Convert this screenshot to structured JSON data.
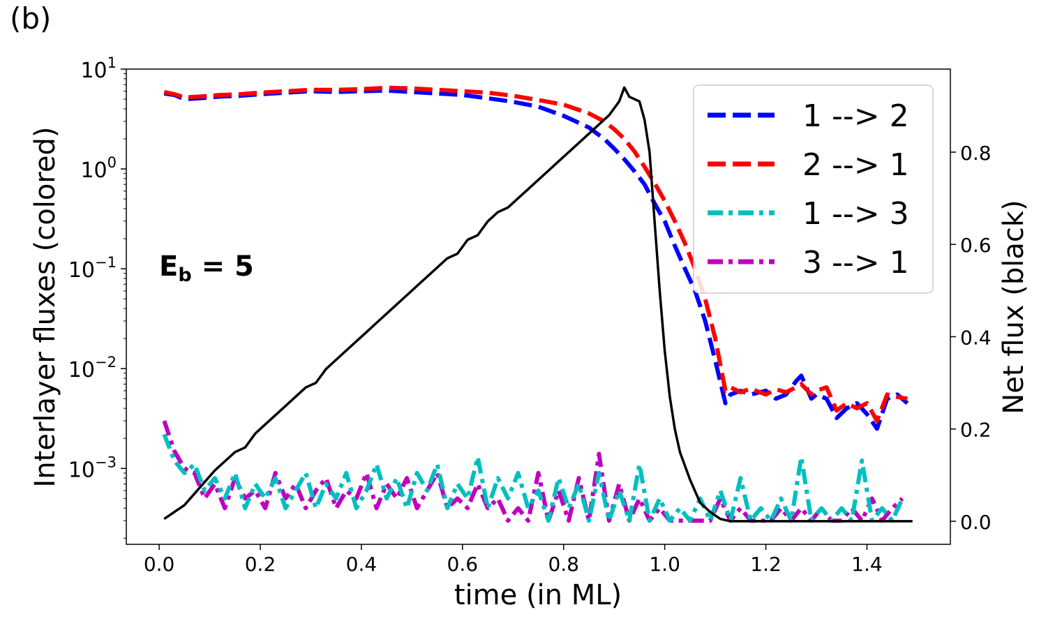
{
  "panel_label": "(b)",
  "annotation": {
    "main": "E",
    "sub": "b",
    "rest": " = 5"
  },
  "chart_data": {
    "type": "line",
    "title": "",
    "xlabel": "time (in ML)",
    "ylabel_left": "Interlayer fluxes (colored)",
    "ylabel_right": "Net flux (black)",
    "xlim": [
      -0.065,
      1.565
    ],
    "ylim_left_log10": [
      -3.76,
      1.0
    ],
    "ylim_right": [
      -0.05,
      0.98
    ],
    "x_ticks": [
      0.0,
      0.2,
      0.4,
      0.6,
      0.8,
      1.0,
      1.2,
      1.4
    ],
    "x_tick_labels": [
      "0.0",
      "0.2",
      "0.4",
      "0.6",
      "0.8",
      "1.0",
      "1.2",
      "1.4"
    ],
    "y_left_ticks": [
      {
        "base": "10",
        "exp": "1",
        "value": 1
      },
      {
        "base": "10",
        "exp": "0",
        "value": 0
      },
      {
        "base": "10",
        "exp": "−1",
        "value": -1
      },
      {
        "base": "10",
        "exp": "−2",
        "value": -2
      },
      {
        "base": "10",
        "exp": "−3",
        "value": -3
      }
    ],
    "y_right_ticks": [
      0.0,
      0.2,
      0.4,
      0.6,
      0.8
    ],
    "y_right_tick_labels": [
      "0.0",
      "0.2",
      "0.4",
      "0.6",
      "0.8"
    ],
    "legend_position": "upper right",
    "series": [
      {
        "name": "1 --> 2",
        "axis": "left",
        "color": "#0000ff",
        "style": "dashed",
        "x": [
          0.01,
          0.03,
          0.05,
          0.08,
          0.12,
          0.16,
          0.2,
          0.25,
          0.3,
          0.35,
          0.4,
          0.45,
          0.5,
          0.55,
          0.6,
          0.65,
          0.7,
          0.75,
          0.8,
          0.85,
          0.88,
          0.9,
          0.92,
          0.94,
          0.96,
          0.98,
          1.0,
          1.02,
          1.04,
          1.06,
          1.08,
          1.1,
          1.12,
          1.13,
          1.15,
          1.17,
          1.2,
          1.22,
          1.24,
          1.26,
          1.27,
          1.29,
          1.3,
          1.32,
          1.34,
          1.36,
          1.38,
          1.4,
          1.42,
          1.44,
          1.46,
          1.48
        ],
        "y": [
          5.7,
          5.5,
          5.0,
          5.1,
          5.3,
          5.4,
          5.6,
          5.8,
          6.0,
          5.9,
          6.0,
          6.1,
          5.9,
          5.7,
          5.5,
          5.1,
          4.7,
          4.2,
          3.4,
          2.6,
          2.0,
          1.6,
          1.25,
          0.95,
          0.7,
          0.45,
          0.3,
          0.17,
          0.1,
          0.06,
          0.03,
          0.012,
          0.0045,
          0.0055,
          0.006,
          0.0055,
          0.006,
          0.005,
          0.0055,
          0.0075,
          0.0085,
          0.005,
          0.0055,
          0.005,
          0.0032,
          0.004,
          0.0045,
          0.0035,
          0.0025,
          0.005,
          0.0055,
          0.0045
        ]
      },
      {
        "name": "2 --> 1",
        "axis": "left",
        "color": "#ff0000",
        "style": "dashed",
        "x": [
          0.01,
          0.03,
          0.05,
          0.08,
          0.12,
          0.16,
          0.2,
          0.25,
          0.3,
          0.35,
          0.4,
          0.45,
          0.5,
          0.55,
          0.6,
          0.65,
          0.7,
          0.75,
          0.8,
          0.85,
          0.88,
          0.9,
          0.92,
          0.94,
          0.96,
          0.98,
          1.0,
          1.02,
          1.04,
          1.06,
          1.08,
          1.1,
          1.12,
          1.13,
          1.15,
          1.17,
          1.2,
          1.22,
          1.24,
          1.26,
          1.27,
          1.29,
          1.3,
          1.32,
          1.34,
          1.36,
          1.38,
          1.4,
          1.42,
          1.44,
          1.46,
          1.48
        ],
        "y": [
          5.9,
          5.6,
          5.2,
          5.3,
          5.5,
          5.6,
          5.8,
          6.0,
          6.2,
          6.2,
          6.3,
          6.5,
          6.4,
          6.2,
          6.0,
          5.8,
          5.4,
          4.9,
          4.4,
          3.6,
          3.0,
          2.5,
          2.0,
          1.5,
          1.05,
          0.72,
          0.48,
          0.3,
          0.18,
          0.1,
          0.05,
          0.02,
          0.006,
          0.0065,
          0.0058,
          0.0063,
          0.0055,
          0.0062,
          0.0058,
          0.0065,
          0.007,
          0.0055,
          0.006,
          0.0065,
          0.0038,
          0.0045,
          0.004,
          0.0045,
          0.003,
          0.0055,
          0.0052,
          0.005
        ]
      },
      {
        "name": "1 --> 3",
        "axis": "left",
        "color": "#00bfbf",
        "style": "dashdot",
        "x": [
          0.01,
          0.03,
          0.05,
          0.07,
          0.09,
          0.11,
          0.13,
          0.15,
          0.17,
          0.19,
          0.21,
          0.23,
          0.25,
          0.27,
          0.29,
          0.31,
          0.33,
          0.35,
          0.37,
          0.39,
          0.41,
          0.43,
          0.45,
          0.47,
          0.49,
          0.51,
          0.53,
          0.55,
          0.57,
          0.59,
          0.61,
          0.63,
          0.65,
          0.67,
          0.69,
          0.71,
          0.73,
          0.75,
          0.77,
          0.79,
          0.81,
          0.83,
          0.85,
          0.87,
          0.89,
          0.91,
          0.93,
          0.95,
          0.97,
          0.99,
          1.01,
          1.03,
          1.05,
          1.07,
          1.09,
          1.11,
          1.13,
          1.15,
          1.17,
          1.19,
          1.21,
          1.23,
          1.25,
          1.27,
          1.29,
          1.31,
          1.33,
          1.35,
          1.37,
          1.39,
          1.41,
          1.43,
          1.45,
          1.47
        ],
        "y": [
          0.0022,
          0.0012,
          0.0009,
          0.0011,
          0.0006,
          0.0008,
          0.0005,
          0.0009,
          0.0004,
          0.0007,
          0.0005,
          0.0008,
          0.0004,
          0.0006,
          0.0009,
          0.0004,
          0.0007,
          0.0005,
          0.0009,
          0.0004,
          0.0006,
          0.0011,
          0.0005,
          0.0008,
          0.0004,
          0.0009,
          0.0006,
          0.0011,
          0.0004,
          0.0007,
          0.0005,
          0.0013,
          0.0004,
          0.0008,
          0.0005,
          0.0009,
          0.0004,
          0.0006,
          0.0003,
          0.0008,
          0.0004,
          0.0007,
          0.0003,
          0.0009,
          0.0003,
          0.0006,
          0.0003,
          0.0011,
          0.0003,
          0.0005,
          0.0003,
          0.0004,
          0.0003,
          0.0005,
          0.0003,
          0.0006,
          0.0003,
          0.0008,
          0.0003,
          0.0004,
          0.0003,
          0.0005,
          0.0003,
          0.0013,
          0.0003,
          0.0004,
          0.0003,
          0.0004,
          0.0003,
          0.0012,
          0.0003,
          0.0004,
          0.0003,
          0.0005
        ]
      },
      {
        "name": "3 --> 1",
        "axis": "left",
        "color": "#bf00bf",
        "style": "dashdot",
        "x": [
          0.01,
          0.03,
          0.05,
          0.07,
          0.09,
          0.11,
          0.13,
          0.15,
          0.17,
          0.19,
          0.21,
          0.23,
          0.25,
          0.27,
          0.29,
          0.31,
          0.33,
          0.35,
          0.37,
          0.39,
          0.41,
          0.43,
          0.45,
          0.47,
          0.49,
          0.51,
          0.53,
          0.55,
          0.57,
          0.59,
          0.61,
          0.63,
          0.65,
          0.67,
          0.69,
          0.71,
          0.73,
          0.75,
          0.77,
          0.79,
          0.81,
          0.83,
          0.85,
          0.87,
          0.89,
          0.91,
          0.93,
          0.95,
          0.97,
          0.99,
          1.01,
          1.03,
          1.05,
          1.07,
          1.09,
          1.11,
          1.13,
          1.15,
          1.17,
          1.19,
          1.21,
          1.23,
          1.25,
          1.27,
          1.29,
          1.31,
          1.33,
          1.35,
          1.37,
          1.39,
          1.41,
          1.43,
          1.45,
          1.47
        ],
        "y": [
          0.003,
          0.0015,
          0.001,
          0.0009,
          0.0005,
          0.0007,
          0.0004,
          0.0008,
          0.0005,
          0.0006,
          0.0004,
          0.0009,
          0.0005,
          0.0007,
          0.0004,
          0.0006,
          0.0008,
          0.0004,
          0.0006,
          0.0005,
          0.0009,
          0.0004,
          0.0007,
          0.0005,
          0.0008,
          0.0004,
          0.0006,
          0.0009,
          0.0004,
          0.0005,
          0.0004,
          0.0007,
          0.0004,
          0.0005,
          0.0003,
          0.0004,
          0.0003,
          0.0009,
          0.0003,
          0.0006,
          0.0003,
          0.0008,
          0.0003,
          0.0014,
          0.0003,
          0.0007,
          0.0003,
          0.0005,
          0.0003,
          0.0004,
          0.0003,
          0.0003,
          0.0003,
          0.0003,
          0.0003,
          0.0005,
          0.0003,
          0.0004,
          0.0003,
          0.0003,
          0.0003,
          0.0004,
          0.0003,
          0.0004,
          0.0003,
          0.0004,
          0.0003,
          0.0003,
          0.0004,
          0.0003,
          0.0005,
          0.0003,
          0.0004,
          0.0005
        ]
      },
      {
        "name": "Net flux",
        "axis": "right",
        "color": "#000000",
        "style": "solid",
        "x": [
          0.01,
          0.03,
          0.05,
          0.07,
          0.09,
          0.11,
          0.13,
          0.15,
          0.17,
          0.19,
          0.21,
          0.23,
          0.25,
          0.27,
          0.29,
          0.31,
          0.33,
          0.35,
          0.37,
          0.39,
          0.41,
          0.43,
          0.45,
          0.47,
          0.49,
          0.51,
          0.53,
          0.55,
          0.57,
          0.59,
          0.61,
          0.63,
          0.65,
          0.67,
          0.69,
          0.71,
          0.73,
          0.75,
          0.77,
          0.79,
          0.81,
          0.83,
          0.85,
          0.87,
          0.89,
          0.91,
          0.92,
          0.93,
          0.95,
          0.96,
          0.97,
          0.98,
          0.99,
          1.0,
          1.01,
          1.02,
          1.03,
          1.05,
          1.07,
          1.09,
          1.11,
          1.13,
          1.15,
          1.2,
          1.25,
          1.3,
          1.35,
          1.4,
          1.45,
          1.49
        ],
        "y": [
          0.005,
          0.02,
          0.035,
          0.06,
          0.085,
          0.11,
          0.13,
          0.15,
          0.16,
          0.19,
          0.21,
          0.23,
          0.25,
          0.27,
          0.29,
          0.3,
          0.33,
          0.35,
          0.37,
          0.39,
          0.41,
          0.43,
          0.45,
          0.47,
          0.49,
          0.51,
          0.53,
          0.55,
          0.57,
          0.58,
          0.61,
          0.62,
          0.65,
          0.67,
          0.68,
          0.7,
          0.72,
          0.74,
          0.76,
          0.78,
          0.8,
          0.82,
          0.84,
          0.86,
          0.88,
          0.91,
          0.94,
          0.92,
          0.91,
          0.87,
          0.8,
          0.65,
          0.5,
          0.37,
          0.27,
          0.2,
          0.15,
          0.09,
          0.04,
          0.02,
          0.005,
          0.0,
          0.0,
          0.0,
          0.0,
          0.0,
          0.0,
          0.0,
          0.0,
          0.0
        ]
      }
    ]
  }
}
